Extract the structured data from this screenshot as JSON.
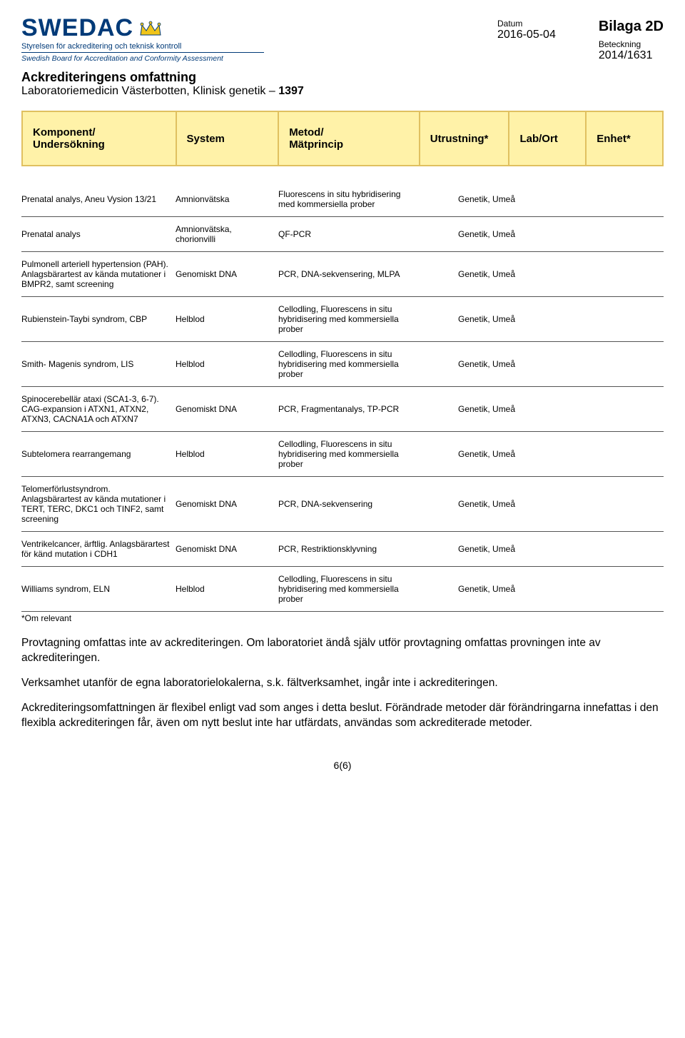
{
  "logo": {
    "name": "SWEDAC",
    "sub_sv": "Styrelsen för ackreditering och teknisk kontroll",
    "sub_en": "Swedish Board for Accreditation and Conformity Assessment",
    "color": "#003a78",
    "crown_fill": "#f0c419",
    "crown_stroke": "#003a78"
  },
  "meta": {
    "bilaga": "Bilaga 2D",
    "datum_label": "Datum",
    "datum_value": "2016-05-04",
    "beteckning_label": "Beteckning",
    "beteckning_value": "2014/1631"
  },
  "title": {
    "main": "Ackrediteringens omfattning",
    "sub_prefix": "Laboratoriemedicin Västerbotten, Klinisk genetik – ",
    "sub_bold": "1397"
  },
  "columns": [
    "Komponent/\nUndersökning",
    "System",
    "Metod/\nMätprincip",
    "Utrustning*",
    "Lab/Ort",
    "Enhet*"
  ],
  "rows": [
    {
      "a": "Prenatal analys, Aneu Vysion 13/21",
      "b": "Amnionvätska",
      "c": "Fluorescens in situ hybridisering med kommersiella prober",
      "d": "",
      "e": "Genetik, Umeå",
      "f": ""
    },
    {
      "a": "Prenatal analys",
      "b": "Amnionvätska, chorionvilli",
      "c": "QF-PCR",
      "d": "",
      "e": "Genetik, Umeå",
      "f": ""
    },
    {
      "a": "Pulmonell arteriell hypertension (PAH). Anlagsbärartest av kända mutationer i BMPR2, samt screening",
      "b": "Genomiskt DNA",
      "c": "PCR, DNA-sekvensering, MLPA",
      "d": "",
      "e": "Genetik, Umeå",
      "f": ""
    },
    {
      "a": "Rubienstein-Taybi syndrom, CBP",
      "b": "Helblod",
      "c": "Cellodling, Fluorescens in situ hybridisering med kommersiella prober",
      "d": "",
      "e": "Genetik, Umeå",
      "f": ""
    },
    {
      "a": "Smith- Magenis syndrom, LIS",
      "b": "Helblod",
      "c": "Cellodling, Fluorescens in situ hybridisering med kommersiella prober",
      "d": "",
      "e": "Genetik, Umeå",
      "f": ""
    },
    {
      "a": "Spinocerebellär ataxi (SCA1-3, 6-7). CAG-expansion i ATXN1, ATXN2, ATXN3, CACNA1A och ATXN7",
      "b": "Genomiskt DNA",
      "c": "PCR, Fragmentanalys, TP-PCR",
      "d": "",
      "e": "Genetik, Umeå",
      "f": ""
    },
    {
      "a": "Subtelomera rearrangemang",
      "b": "Helblod",
      "c": "Cellodling, Fluorescens in situ hybridisering med kommersiella prober",
      "d": "",
      "e": "Genetik, Umeå",
      "f": ""
    },
    {
      "a": "Telomerförlustsyndrom. Anlagsbärartest av kända mutationer i TERT, TERC, DKC1 och TINF2, samt screening",
      "b": "Genomiskt DNA",
      "c": "PCR, DNA-sekvensering",
      "d": "",
      "e": "Genetik, Umeå",
      "f": ""
    },
    {
      "a": "Ventrikelcancer, ärftlig. Anlagsbärartest för känd mutation i CDH1",
      "b": "Genomiskt DNA",
      "c": "PCR, Restriktionsklyvning",
      "d": "",
      "e": "Genetik, Umeå",
      "f": ""
    },
    {
      "a": "Williams syndrom, ELN",
      "b": "Helblod",
      "c": "Cellodling, Fluorescens in situ hybridisering med kommersiella prober",
      "d": "",
      "e": "Genetik, Umeå",
      "f": ""
    }
  ],
  "footnote": "*Om relevant",
  "paragraphs": [
    "Provtagning omfattas inte av ackrediteringen. Om laboratoriet ändå själv utför provtagning omfattas provningen inte av ackrediteringen.",
    "Verksamhet utanför de egna laboratorielokalerna, s.k. fältverksamhet, ingår inte i ackrediteringen.",
    "Ackrediteringsomfattningen är flexibel enligt vad som anges i detta beslut. Förändrade metoder där förändringarna innefattas i den flexibla ackrediteringen får, även om nytt beslut inte har utfärdats, användas som ackrediterade metoder."
  ],
  "page": "6(6)"
}
